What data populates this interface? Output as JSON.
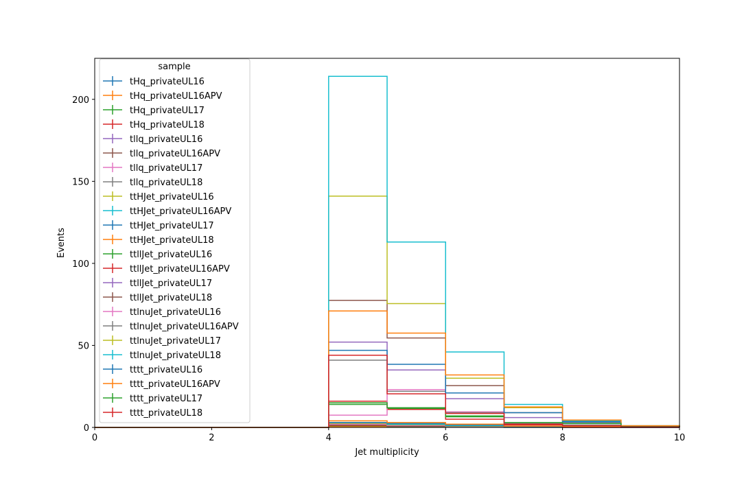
{
  "chart_data": {
    "type": "histogram",
    "xlabel": "Jet multiplicity",
    "ylabel": "Events",
    "xlim": [
      0,
      10
    ],
    "ylim": [
      0,
      225
    ],
    "x_ticks": [
      "0",
      "2",
      "4",
      "6",
      "8",
      "10"
    ],
    "y_ticks": [
      "0",
      "50",
      "100",
      "150",
      "200"
    ],
    "grid": false,
    "legend": {
      "title": "sample",
      "placement": "top-left"
    },
    "bin_edges": [
      0,
      1,
      2,
      3,
      4,
      5,
      6,
      7,
      8,
      9,
      10
    ],
    "series": [
      {
        "name": "tHq_privateUL16",
        "color": "#1f77b4",
        "values": [
          0,
          0,
          0,
          0,
          0.5,
          0.3,
          0.1,
          0.05,
          0,
          0
        ]
      },
      {
        "name": "tHq_privateUL16APV",
        "color": "#ff7f0e",
        "values": [
          0,
          0,
          0,
          0,
          0.5,
          0.3,
          0.1,
          0.05,
          0,
          0
        ]
      },
      {
        "name": "tHq_privateUL17",
        "color": "#2ca02c",
        "values": [
          0,
          0,
          0,
          0,
          1,
          0.6,
          0.2,
          0.1,
          0,
          0
        ]
      },
      {
        "name": "tHq_privateUL18",
        "color": "#d62728",
        "values": [
          0,
          0,
          0,
          0,
          1.2,
          0.7,
          0.3,
          0.1,
          0,
          0
        ]
      },
      {
        "name": "tllq_privateUL16",
        "color": "#9467bd",
        "values": [
          0,
          0,
          0,
          0,
          1.5,
          0.8,
          0.3,
          0.1,
          0,
          0
        ]
      },
      {
        "name": "tllq_privateUL16APV",
        "color": "#8c564b",
        "values": [
          0,
          0,
          0,
          0,
          1.5,
          0.8,
          0.3,
          0.1,
          0,
          0
        ]
      },
      {
        "name": "tllq_privateUL17",
        "color": "#e377c2",
        "values": [
          0,
          0,
          0,
          0,
          2,
          1.2,
          0.5,
          0.2,
          0,
          0
        ]
      },
      {
        "name": "tllq_privateUL18",
        "color": "#7f7f7f",
        "values": [
          0,
          0,
          0,
          0,
          2.5,
          1.5,
          0.6,
          0.2,
          0.1,
          0
        ]
      },
      {
        "name": "ttHJet_privateUL16",
        "color": "#bcbd22",
        "values": [
          0,
          0,
          0,
          0,
          2.5,
          1.8,
          1,
          0.4,
          0.2,
          0.1
        ]
      },
      {
        "name": "ttHJet_privateUL16APV",
        "color": "#17becf",
        "values": [
          0,
          0,
          0,
          0,
          3,
          2,
          1.2,
          0.5,
          0.2,
          0.1
        ]
      },
      {
        "name": "ttHJet_privateUL17",
        "color": "#1f77b4",
        "values": [
          0,
          0,
          0,
          0,
          3,
          2.5,
          1.5,
          0.6,
          0.3,
          0.1
        ]
      },
      {
        "name": "ttHJet_privateUL18",
        "color": "#ff7f0e",
        "values": [
          0,
          0,
          0,
          0,
          4,
          3,
          2,
          0.8,
          0.4,
          0.2
        ]
      },
      {
        "name": "ttllJet_privateUL16",
        "color": "#2ca02c",
        "values": [
          0,
          0,
          0,
          0,
          14,
          11.5,
          7,
          2.5,
          2.5,
          0.5
        ]
      },
      {
        "name": "ttllJet_privateUL16APV",
        "color": "#d62728",
        "values": [
          0,
          0,
          0,
          0,
          16,
          11,
          5,
          1.5,
          1,
          0.3
        ]
      },
      {
        "name": "ttllJet_privateUL17",
        "color": "#9467bd",
        "values": [
          0,
          0,
          0,
          0,
          52,
          35,
          17.5,
          6,
          3,
          0.5
        ]
      },
      {
        "name": "ttllJet_privateUL18",
        "color": "#8c564b",
        "values": [
          0,
          0,
          0,
          0,
          77.5,
          54.5,
          25.5,
          9,
          4,
          1
        ]
      },
      {
        "name": "ttlnuJet_privateUL16",
        "color": "#e377c2",
        "values": [
          0,
          0,
          0,
          0,
          7.5,
          23,
          9.5,
          2,
          1,
          0.2
        ]
      },
      {
        "name": "ttlnuJet_privateUL16APV",
        "color": "#7f7f7f",
        "values": [
          0,
          0,
          0,
          0,
          41,
          22,
          9,
          2.5,
          1.5,
          0.3
        ]
      },
      {
        "name": "ttlnuJet_privateUL17",
        "color": "#bcbd22",
        "values": [
          0,
          0,
          0,
          0,
          141,
          75.5,
          30,
          12,
          4.5,
          1
        ]
      },
      {
        "name": "ttlnuJet_privateUL18",
        "color": "#17becf",
        "values": [
          0,
          0,
          0,
          0,
          214,
          113,
          46,
          14,
          4,
          1
        ]
      },
      {
        "name": "tttt_privateUL16",
        "color": "#1f77b4",
        "values": [
          0,
          0,
          0,
          0,
          47,
          38.5,
          21,
          9,
          3.5,
          0.5
        ]
      },
      {
        "name": "tttt_privateUL16APV",
        "color": "#ff7f0e",
        "values": [
          0,
          0,
          0,
          0,
          71,
          57.5,
          32,
          12.5,
          4.5,
          1
        ]
      },
      {
        "name": "tttt_privateUL17",
        "color": "#2ca02c",
        "values": [
          0,
          0,
          0,
          0,
          15,
          12,
          6.5,
          3,
          2.5,
          0.5
        ]
      },
      {
        "name": "tttt_privateUL18",
        "color": "#d62728",
        "values": [
          0,
          0,
          0,
          0,
          44,
          20.5,
          8.5,
          2,
          1,
          0.3
        ]
      }
    ]
  }
}
